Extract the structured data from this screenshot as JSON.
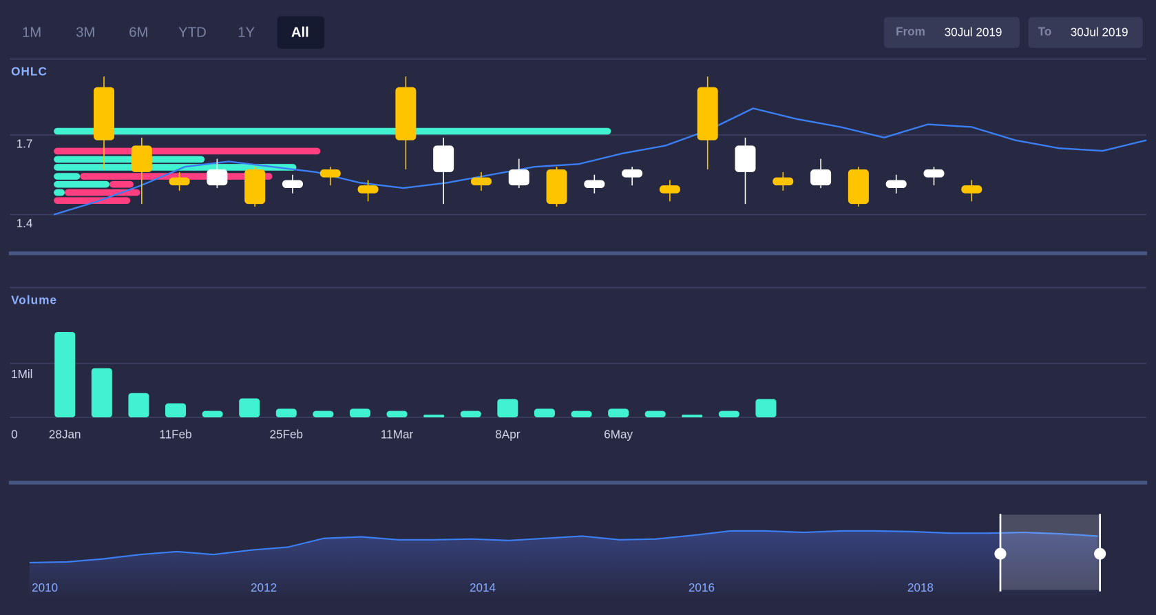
{
  "range_buttons": [
    "1M",
    "3M",
    "6M",
    "YTD",
    "1Y",
    "All"
  ],
  "selected_range": 5,
  "date_range": {
    "from_label": "From",
    "from": "30Jul 2019",
    "to_label": "To",
    "to": "30Jul 2019"
  },
  "chart_data": [
    {
      "type": "candlestick",
      "title": "OHLC",
      "open": [
        1.88,
        1.66,
        1.54,
        1.51,
        1.57,
        1.5,
        1.57,
        1.51,
        1.88,
        1.56,
        1.54,
        1.51,
        1.57,
        1.5,
        1.54,
        1.51,
        1.88,
        1.56,
        1.54,
        1.51,
        1.57,
        1.5,
        1.54,
        1.51
      ],
      "high": [
        1.92,
        1.69,
        1.56,
        1.61,
        1.58,
        1.55,
        1.58,
        1.53,
        1.92,
        1.69,
        1.56,
        1.61,
        1.58,
        1.55,
        1.58,
        1.53,
        1.92,
        1.69,
        1.56,
        1.61,
        1.58,
        1.55,
        1.58,
        1.53
      ],
      "low": [
        1.57,
        1.44,
        1.49,
        1.5,
        1.43,
        1.48,
        1.51,
        1.45,
        1.57,
        1.44,
        1.49,
        1.5,
        1.43,
        1.48,
        1.51,
        1.45,
        1.57,
        1.44,
        1.49,
        1.5,
        1.43,
        1.48,
        1.51,
        1.45
      ],
      "close": [
        1.68,
        1.56,
        1.51,
        1.57,
        1.44,
        1.53,
        1.54,
        1.48,
        1.68,
        1.66,
        1.51,
        1.57,
        1.44,
        1.53,
        1.57,
        1.48,
        1.68,
        1.66,
        1.51,
        1.57,
        1.44,
        1.53,
        1.57,
        1.48
      ],
      "up_color": "#ffffff",
      "down_color": "#ffc400",
      "ylim": [
        1.3,
        1.95
      ],
      "yticks": [
        1.4,
        1.7
      ],
      "grid": true,
      "line": {
        "color": "#3b7ff5",
        "values": [
          1.4,
          1.45,
          1.51,
          1.58,
          1.6,
          1.58,
          1.56,
          1.52,
          1.5,
          1.52,
          1.55,
          1.58,
          1.59,
          1.63,
          1.66,
          1.72,
          1.8,
          1.76,
          1.73,
          1.69,
          1.74,
          1.73,
          1.68,
          1.65,
          1.64,
          1.68
        ]
      },
      "volume_profile": {
        "levels": [
          1.714,
          1.639,
          1.608,
          1.578,
          1.544,
          1.514,
          1.483,
          1.453
        ],
        "up_values": [
          51,
          0,
          13.8,
          22.2,
          2.4,
          5.1,
          1.0,
          0
        ],
        "down_values": [
          0,
          24.4,
          0,
          0,
          17.6,
          2.2,
          6.9,
          7.0
        ],
        "up_color": "#40f2cf",
        "down_color": "#ff3f7f",
        "xlim": [
          0,
          100
        ]
      }
    },
    {
      "type": "bar",
      "title": "Volume",
      "categories": [
        "28Jan",
        null,
        null,
        "11Feb",
        null,
        null,
        "25Feb",
        null,
        null,
        "11Mar",
        null,
        null,
        "8Apr",
        null,
        null,
        "6May",
        null,
        null,
        null,
        null
      ],
      "values": [
        1580000,
        910000,
        450000,
        260000,
        120000,
        350000,
        160000,
        120000,
        160000,
        120000,
        50000,
        120000,
        340000,
        160000,
        120000,
        160000,
        120000,
        50000,
        120000,
        340000
      ],
      "color": "#40f2cf",
      "ylim": [
        0,
        2400000
      ],
      "yticks": [
        0,
        {
          "value": 1000000,
          "label": "1Mil"
        }
      ],
      "grid": true
    },
    {
      "type": "area",
      "x": [
        2010,
        2010.34,
        2010.67,
        2011.01,
        2011.35,
        2011.68,
        2012.02,
        2012.36,
        2012.69,
        2013.03,
        2013.37,
        2013.7,
        2014.04,
        2014.38,
        2014.71,
        2015.05,
        2015.39,
        2015.72,
        2016.06,
        2016.4,
        2016.73,
        2017.07,
        2017.41,
        2017.74,
        2018.08,
        2018.42,
        2018.75,
        2019.09,
        2019.43,
        2019.76
      ],
      "values": [
        37,
        38,
        42,
        48,
        52,
        48,
        54,
        58,
        70,
        72,
        68,
        68,
        69,
        67,
        70,
        73,
        68,
        69,
        74,
        80,
        80,
        78,
        80,
        80,
        79,
        77,
        77,
        78,
        76,
        73
      ],
      "color": "#3b7ff5",
      "xlim": [
        2010,
        2019.8
      ],
      "xticks": [
        2010,
        2012,
        2014,
        2016,
        2018
      ],
      "ylim": [
        0,
        110
      ],
      "selection": [
        2018.87,
        2019.78
      ]
    }
  ]
}
